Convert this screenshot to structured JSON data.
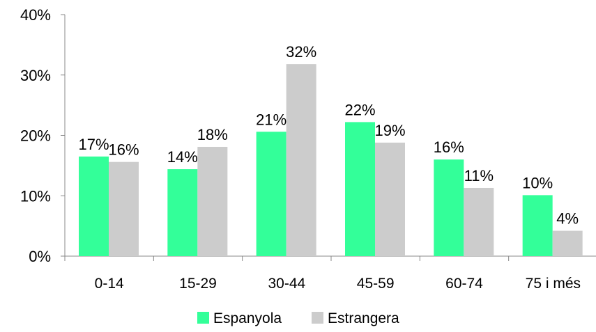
{
  "chart_data": {
    "type": "bar",
    "categories": [
      "0-14",
      "15-29",
      "30-44",
      "45-59",
      "60-74",
      "75 i més"
    ],
    "series": [
      {
        "name": "Espanyola",
        "values": [
          16.5,
          14.4,
          20.6,
          22.2,
          16.0,
          10.1
        ],
        "labels": [
          "17%",
          "14%",
          "21%",
          "22%",
          "16%",
          "10%"
        ],
        "color": "#33ff99"
      },
      {
        "name": "Estrangera",
        "values": [
          15.6,
          18.1,
          31.8,
          18.8,
          11.3,
          4.2
        ],
        "labels": [
          "16%",
          "18%",
          "32%",
          "19%",
          "11%",
          "4%"
        ],
        "color": "#cccccc"
      }
    ],
    "yticks": [
      "0%",
      "10%",
      "20%",
      "30%",
      "40%"
    ],
    "ylim": [
      0,
      40
    ],
    "grid": false,
    "legend_position": "bottom"
  }
}
